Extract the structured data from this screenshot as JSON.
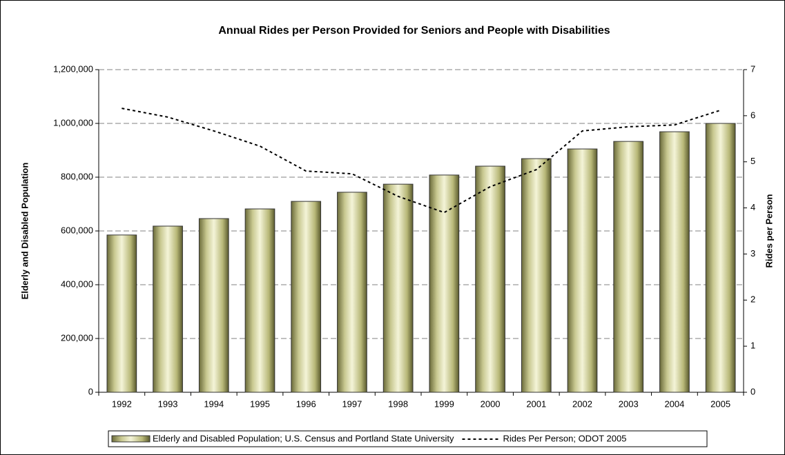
{
  "chart_data": {
    "type": "bar",
    "title": "Annual Rides per Person Provided for Seniors and People with Disabilities",
    "y_label": "Elderly and Disabled Population",
    "y2_label": "Rides per Person",
    "categories": [
      "1992",
      "1993",
      "1994",
      "1995",
      "1996",
      "1997",
      "1998",
      "1999",
      "2000",
      "2001",
      "2002",
      "2003",
      "2004",
      "2005"
    ],
    "series": [
      {
        "name": "Elderly and Disabled Population; U.S. Census and Portland State University",
        "type": "bar",
        "color": "#d8d8a8",
        "values": [
          585000,
          618000,
          646000,
          682000,
          710000,
          744000,
          774000,
          808000,
          841000,
          869000,
          905000,
          933000,
          969000,
          1000000
        ]
      },
      {
        "name": "Rides Per Person; ODOT 2005",
        "type": "line",
        "axis": "y2",
        "color": "#000000",
        "values": [
          6.16,
          5.97,
          5.67,
          5.34,
          4.8,
          4.74,
          4.25,
          3.9,
          4.46,
          4.83,
          5.67,
          5.76,
          5.8,
          6.12
        ]
      }
    ],
    "ylim": [
      0,
      1200000
    ],
    "yticks": [
      0,
      {
        "value": 200000,
        "label": "200,000"
      },
      {
        "value": 400000,
        "label": "400,000"
      },
      {
        "value": 600000,
        "label": "600,000"
      },
      {
        "value": 800000,
        "label": "800,000"
      },
      {
        "value": 1000000,
        "label": "1,000,000"
      },
      {
        "value": 1200000,
        "label": "1,200,000"
      }
    ],
    "y2lim": [
      0,
      7
    ],
    "y2ticks": [
      0,
      1,
      2,
      3,
      4,
      5,
      6,
      7
    ],
    "grid": true,
    "legend": "bottom"
  }
}
